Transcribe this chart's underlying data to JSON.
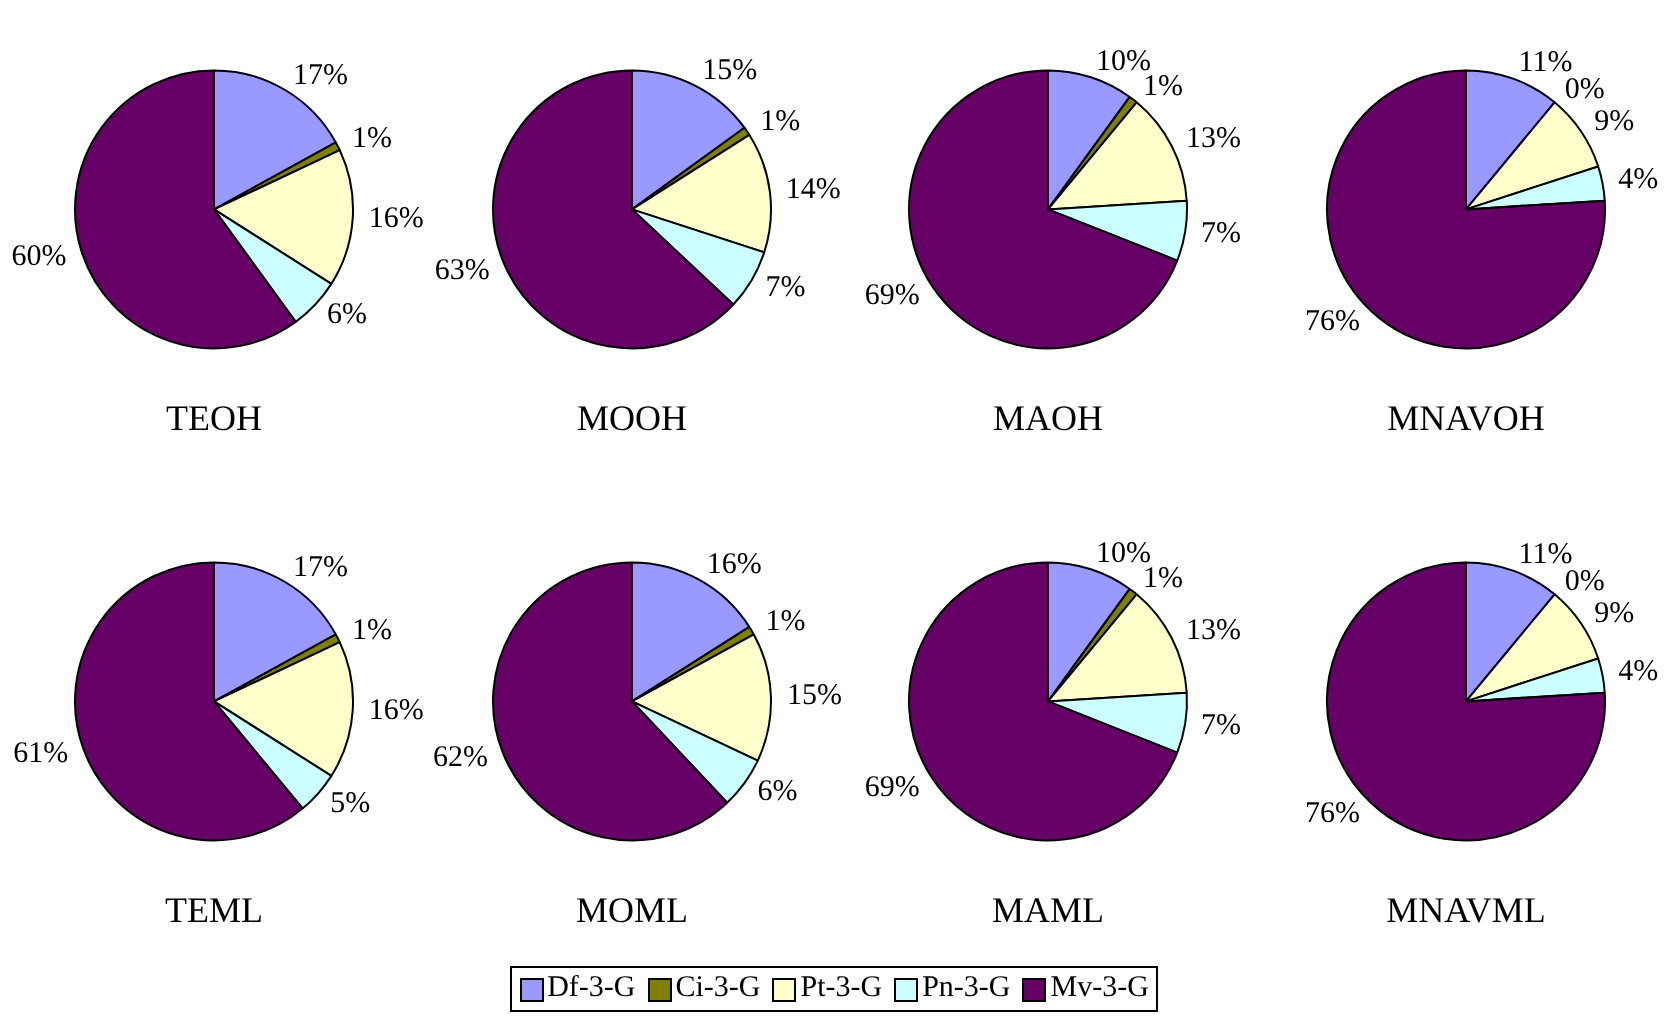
{
  "chart_data": [
    {
      "type": "pie",
      "title": "TEOH",
      "categories": [
        "Df-3-G",
        "Ci-3-G",
        "Pt-3-G",
        "Pn-3-G",
        "Mv-3-G"
      ],
      "values": [
        17,
        1,
        16,
        6,
        60
      ],
      "value_labels": [
        "17%",
        "1%",
        "16%",
        "6%",
        "60%"
      ],
      "colors": [
        "#9999ff",
        "#808000",
        "#ffffcc",
        "#ccffff",
        "#660066"
      ],
      "legend": "bottom"
    },
    {
      "type": "pie",
      "title": "MOOH",
      "categories": [
        null,
        null,
        null,
        null,
        null
      ],
      "values": [
        15,
        1,
        14,
        7,
        63
      ],
      "value_labels": [
        "15%",
        "1%",
        "14%",
        "7%",
        "63%"
      ],
      "colors": [
        "#9999ff",
        "#808000",
        "#ffffcc",
        "#ccffff",
        "#660066"
      ]
    },
    {
      "type": "pie",
      "title": "MAOH",
      "categories": [
        null,
        null,
        null,
        null,
        null
      ],
      "values": [
        10,
        1,
        13,
        7,
        69
      ],
      "value_labels": [
        "10%",
        "1%",
        "13%",
        "7%",
        "69%"
      ],
      "colors": [
        "#9999ff",
        "#808000",
        "#ffffcc",
        "#ccffff",
        "#660066"
      ]
    },
    {
      "type": "pie",
      "title": "MNAVOH",
      "categories": [
        null,
        null,
        null,
        null,
        null
      ],
      "values": [
        11,
        0,
        9,
        4,
        76
      ],
      "value_labels": [
        "11%",
        "0%",
        "9%",
        "4%",
        "76%"
      ],
      "colors": [
        "#9999ff",
        "#808000",
        "#ffffcc",
        "#ccffff",
        "#660066"
      ]
    },
    {
      "type": "pie",
      "title": "TEML",
      "categories": [
        null,
        null,
        null,
        null,
        null
      ],
      "values": [
        17,
        1,
        16,
        5,
        61
      ],
      "value_labels": [
        "17%",
        "1%",
        "16%",
        "5%",
        "61%"
      ],
      "colors": [
        "#9999ff",
        "#808000",
        "#ffffcc",
        "#ccffff",
        "#660066"
      ]
    },
    {
      "type": "pie",
      "title": "MOML",
      "categories": [
        null,
        null,
        null,
        null,
        null
      ],
      "values": [
        16,
        1,
        15,
        6,
        62
      ],
      "value_labels": [
        "16%",
        "1%",
        "15%",
        "6%",
        "62%"
      ],
      "colors": [
        "#9999ff",
        "#808000",
        "#ffffcc",
        "#ccffff",
        "#660066"
      ]
    },
    {
      "type": "pie",
      "title": "MAML",
      "categories": [
        null,
        null,
        null,
        null,
        null
      ],
      "values": [
        10,
        1,
        13,
        7,
        69
      ],
      "value_labels": [
        "10%",
        "1%",
        "13%",
        "7%",
        "69%"
      ],
      "colors": [
        "#9999ff",
        "#808000",
        "#ffffcc",
        "#ccffff",
        "#660066"
      ]
    },
    {
      "type": "pie",
      "title": "MNAVML",
      "categories": [
        null,
        null,
        null,
        null,
        null
      ],
      "values": [
        11,
        0,
        9,
        4,
        76
      ],
      "value_labels": [
        "11%",
        "0%",
        "9%",
        "4%",
        "76%"
      ],
      "colors": [
        "#9999ff",
        "#808000",
        "#ffffcc",
        "#ccffff",
        "#660066"
      ]
    }
  ]
}
